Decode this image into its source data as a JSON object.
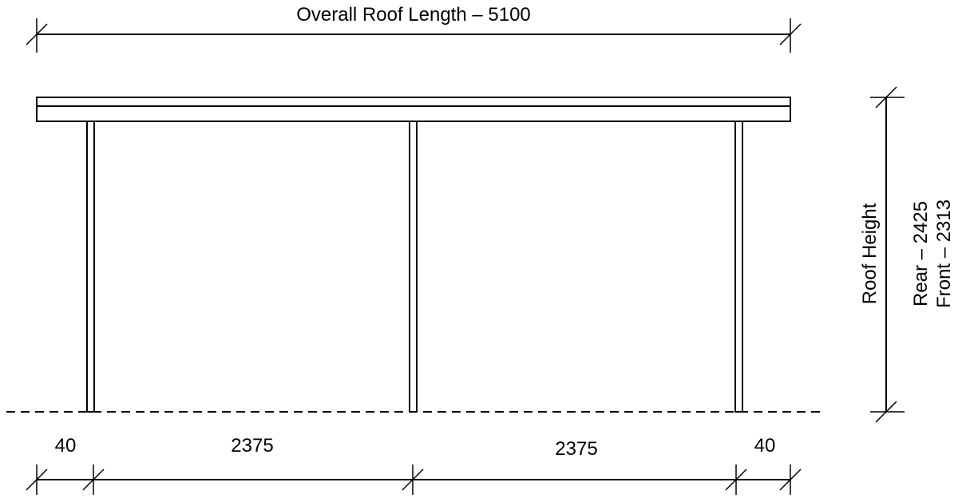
{
  "dimensions": {
    "overall_length": "Overall Roof Length – 5100",
    "left_overhang": "40",
    "left_span": "2375",
    "right_span": "2375",
    "right_overhang": "40",
    "roof_height_label": "Roof Height",
    "rear_height": "Rear – 2425",
    "front_height": "Front – 2313"
  },
  "colors": {
    "line": "#000000",
    "background": "#ffffff"
  }
}
